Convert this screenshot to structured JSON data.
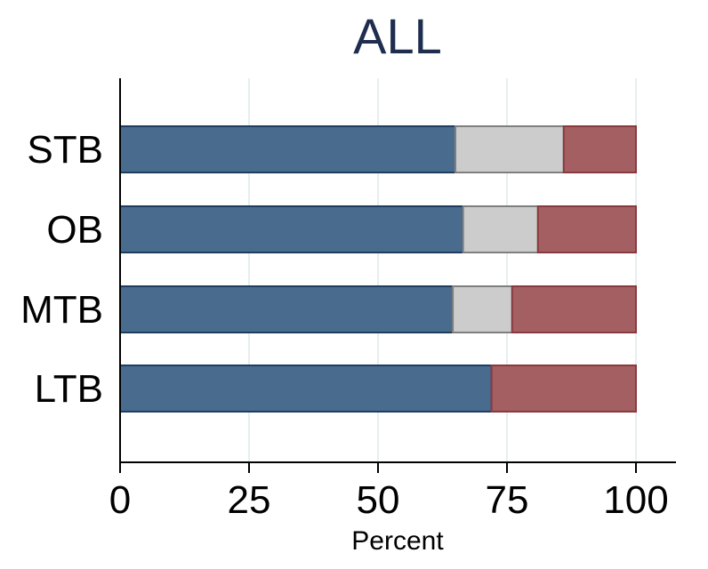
{
  "chart_data": {
    "type": "bar",
    "orientation": "horizontal",
    "stacked": true,
    "title": "ALL",
    "xlabel": "Percent",
    "ylabel": "",
    "xlim": [
      0,
      100
    ],
    "xticks": [
      "0",
      "25",
      "50",
      "75",
      "100"
    ],
    "categories": [
      "STB",
      "OB",
      "MTB",
      "LTB"
    ],
    "series": [
      {
        "values": [
          65,
          66.5,
          64.5,
          72
        ],
        "color": "#486b8e"
      },
      {
        "values": [
          21,
          14.5,
          11.5,
          0
        ],
        "color": "#cccccc"
      },
      {
        "values": [
          14,
          19,
          24,
          28
        ],
        "color": "#a35f61"
      }
    ],
    "grid": true,
    "legend": "none"
  }
}
